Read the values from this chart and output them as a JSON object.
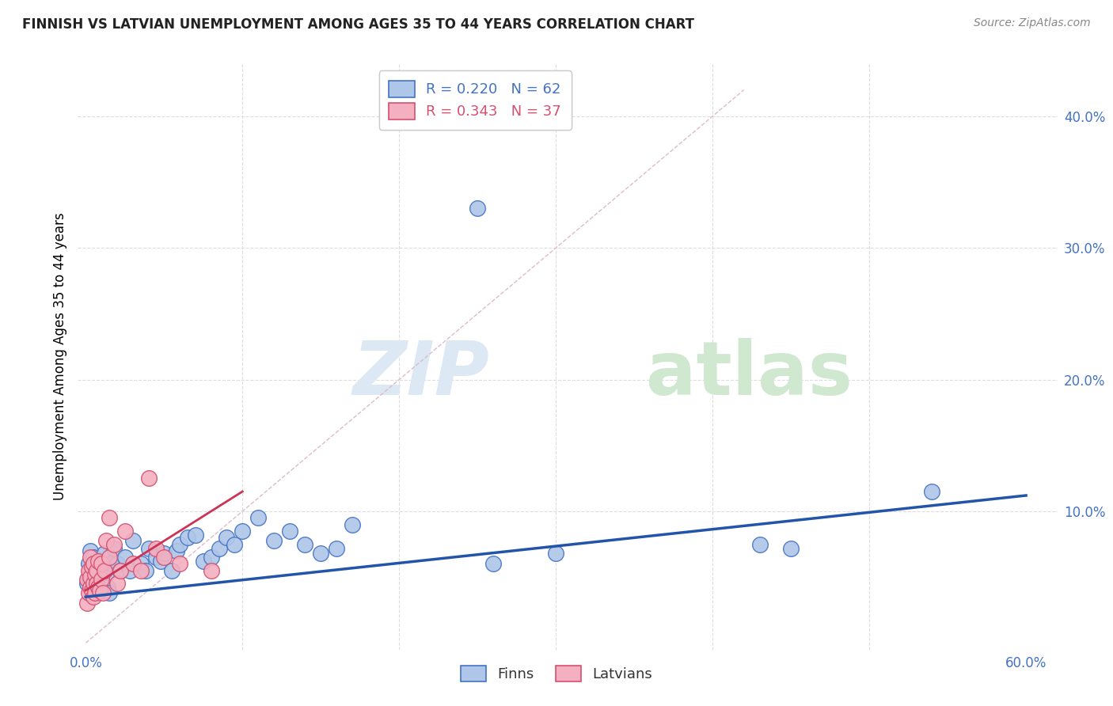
{
  "title": "FINNISH VS LATVIAN UNEMPLOYMENT AMONG AGES 35 TO 44 YEARS CORRELATION CHART",
  "source": "Source: ZipAtlas.com",
  "ylabel": "Unemployment Among Ages 35 to 44 years",
  "finn_R": 0.22,
  "finn_N": 62,
  "latvian_R": 0.343,
  "latvian_N": 37,
  "xlim": [
    -0.005,
    0.62
  ],
  "ylim": [
    -0.005,
    0.44
  ],
  "x_ticks": [
    0.0,
    0.6
  ],
  "y_ticks": [
    0.1,
    0.2,
    0.3,
    0.4
  ],
  "finn_color": "#aec6e8",
  "finn_edge_color": "#4472c4",
  "latvian_color": "#f4afc0",
  "latvian_edge_color": "#d45070",
  "finn_line_color": "#2255aa",
  "latvian_line_color": "#cc3355",
  "diagonal_color": "#c8c8c8",
  "finn_x": [
    0.001,
    0.002,
    0.002,
    0.003,
    0.003,
    0.003,
    0.004,
    0.004,
    0.005,
    0.005,
    0.005,
    0.006,
    0.006,
    0.007,
    0.007,
    0.008,
    0.008,
    0.009,
    0.01,
    0.01,
    0.011,
    0.012,
    0.013,
    0.014,
    0.015,
    0.016,
    0.018,
    0.02,
    0.022,
    0.025,
    0.028,
    0.03,
    0.035,
    0.038,
    0.04,
    0.045,
    0.048,
    0.05,
    0.055,
    0.058,
    0.06,
    0.065,
    0.07,
    0.075,
    0.08,
    0.085,
    0.09,
    0.095,
    0.1,
    0.11,
    0.12,
    0.13,
    0.14,
    0.15,
    0.16,
    0.17,
    0.25,
    0.26,
    0.3,
    0.43,
    0.45,
    0.54
  ],
  "finn_y": [
    0.045,
    0.05,
    0.06,
    0.042,
    0.055,
    0.07,
    0.048,
    0.058,
    0.04,
    0.065,
    0.05,
    0.052,
    0.06,
    0.038,
    0.045,
    0.042,
    0.058,
    0.055,
    0.048,
    0.06,
    0.055,
    0.068,
    0.052,
    0.042,
    0.038,
    0.06,
    0.072,
    0.06,
    0.055,
    0.065,
    0.055,
    0.078,
    0.06,
    0.055,
    0.072,
    0.065,
    0.062,
    0.068,
    0.055,
    0.07,
    0.075,
    0.08,
    0.082,
    0.062,
    0.065,
    0.072,
    0.08,
    0.075,
    0.085,
    0.095,
    0.078,
    0.085,
    0.075,
    0.068,
    0.072,
    0.09,
    0.33,
    0.06,
    0.068,
    0.075,
    0.072,
    0.115
  ],
  "latvian_x": [
    0.001,
    0.001,
    0.002,
    0.002,
    0.003,
    0.003,
    0.003,
    0.004,
    0.004,
    0.005,
    0.005,
    0.005,
    0.006,
    0.006,
    0.007,
    0.007,
    0.008,
    0.008,
    0.009,
    0.01,
    0.01,
    0.011,
    0.012,
    0.013,
    0.015,
    0.015,
    0.018,
    0.02,
    0.022,
    0.025,
    0.03,
    0.035,
    0.04,
    0.045,
    0.05,
    0.06,
    0.08
  ],
  "latvian_y": [
    0.03,
    0.048,
    0.038,
    0.055,
    0.042,
    0.05,
    0.065,
    0.04,
    0.058,
    0.035,
    0.045,
    0.06,
    0.038,
    0.052,
    0.045,
    0.055,
    0.042,
    0.062,
    0.04,
    0.048,
    0.06,
    0.038,
    0.055,
    0.078,
    0.065,
    0.095,
    0.075,
    0.045,
    0.055,
    0.085,
    0.06,
    0.055,
    0.125,
    0.072,
    0.065,
    0.06,
    0.055
  ],
  "finn_trendline_x": [
    0.0,
    0.6
  ],
  "finn_trendline_y": [
    0.035,
    0.112
  ],
  "latvian_trendline_x": [
    0.0,
    0.1
  ],
  "latvian_trendline_y": [
    0.04,
    0.115
  ]
}
